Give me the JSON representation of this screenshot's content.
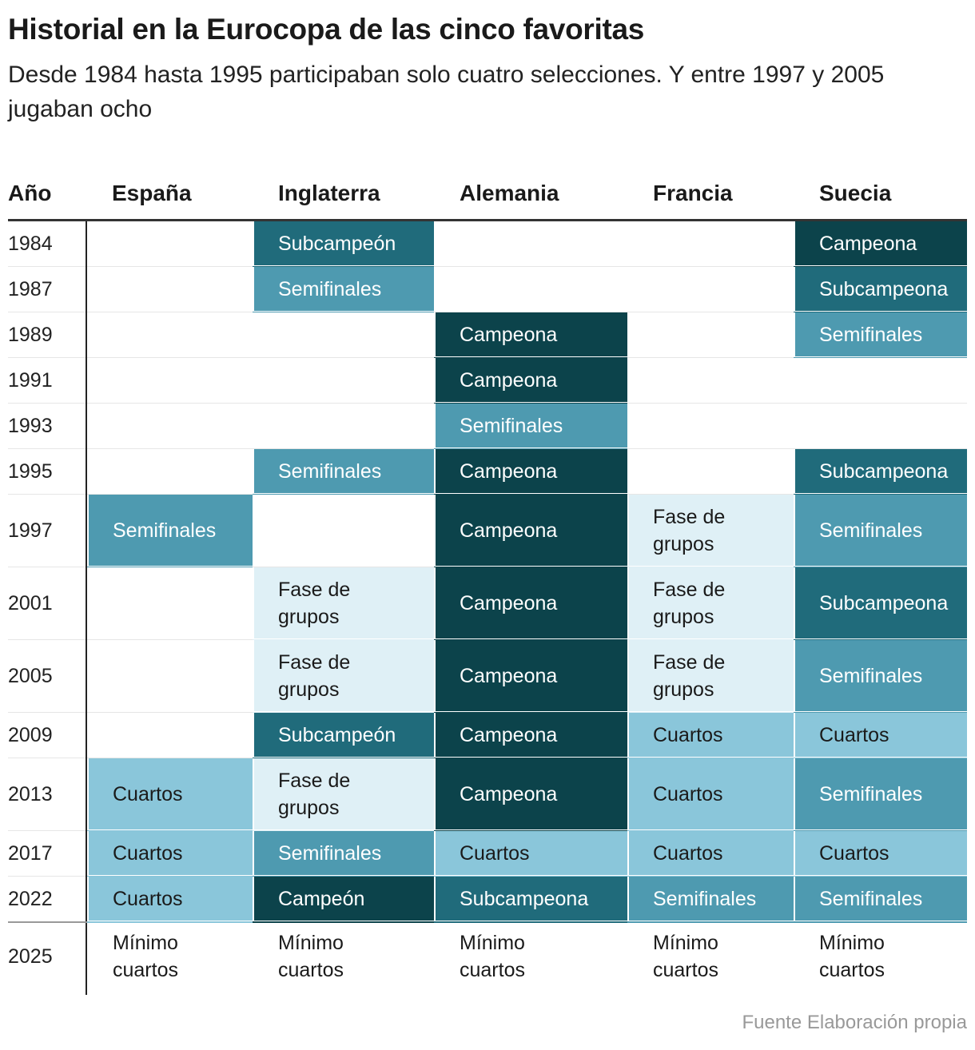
{
  "header": {
    "title": "Historial en la Eurocopa de las cinco favoritas",
    "subtitle": "Desde 1984 hasta 1995 participaban solo cuatro selecciones. Y entre 1997 y 2005 jugaban ocho"
  },
  "table": {
    "columns": [
      "Año",
      "España",
      "Inglaterra",
      "Alemania",
      "Francia",
      "Suecia"
    ],
    "rows": [
      {
        "year": "1984",
        "cells": [
          null,
          {
            "text": "Subcampeón",
            "color": "#206b7b"
          },
          null,
          null,
          {
            "text": "Campeona",
            "color": "#0c434b"
          }
        ]
      },
      {
        "year": "1987",
        "cells": [
          null,
          {
            "text": "Semifinales",
            "color": "#4e9ab0"
          },
          null,
          null,
          {
            "text": "Subcampeona",
            "color": "#206b7b"
          }
        ]
      },
      {
        "year": "1989",
        "cells": [
          null,
          null,
          {
            "text": "Campeona",
            "color": "#0c434b"
          },
          null,
          {
            "text": "Semifinales",
            "color": "#4e9ab0"
          }
        ]
      },
      {
        "year": "1991",
        "cells": [
          null,
          null,
          {
            "text": "Campeona",
            "color": "#0c434b"
          },
          null,
          null
        ]
      },
      {
        "year": "1993",
        "cells": [
          null,
          null,
          {
            "text": "Semifinales",
            "color": "#4e9ab0"
          },
          null,
          null
        ]
      },
      {
        "year": "1995",
        "cells": [
          null,
          {
            "text": "Semifinales",
            "color": "#4e9ab0"
          },
          {
            "text": "Campeona",
            "color": "#0c434b"
          },
          null,
          {
            "text": "Subcampeona",
            "color": "#206b7b"
          }
        ]
      },
      {
        "year": "1997",
        "cells": [
          {
            "text": "Semifinales",
            "color": "#4e9ab0"
          },
          null,
          {
            "text": "Campeona",
            "color": "#0c434b"
          },
          {
            "text": "Fase de grupos",
            "color": "#dff0f6"
          },
          {
            "text": "Semifinales",
            "color": "#4e9ab0"
          }
        ]
      },
      {
        "year": "2001",
        "cells": [
          null,
          {
            "text": "Fase de grupos",
            "color": "#dff0f6"
          },
          {
            "text": "Campeona",
            "color": "#0c434b"
          },
          {
            "text": "Fase de grupos",
            "color": "#dff0f6"
          },
          {
            "text": "Subcampeona",
            "color": "#206b7b"
          }
        ]
      },
      {
        "year": "2005",
        "cells": [
          null,
          {
            "text": "Fase de grupos",
            "color": "#dff0f6"
          },
          {
            "text": "Campeona",
            "color": "#0c434b"
          },
          {
            "text": "Fase de grupos",
            "color": "#dff0f6"
          },
          {
            "text": "Semifinales",
            "color": "#4e9ab0"
          }
        ]
      },
      {
        "year": "2009",
        "cells": [
          null,
          {
            "text": "Subcampeón",
            "color": "#206b7b"
          },
          {
            "text": "Campeona",
            "color": "#0c434b"
          },
          {
            "text": "Cuartos",
            "color": "#8ac6da"
          },
          {
            "text": "Cuartos",
            "color": "#8ac6da"
          }
        ]
      },
      {
        "year": "2013",
        "cells": [
          {
            "text": "Cuartos",
            "color": "#8ac6da"
          },
          {
            "text": "Fase de grupos",
            "color": "#dff0f6"
          },
          {
            "text": "Campeona",
            "color": "#0c434b"
          },
          {
            "text": "Cuartos",
            "color": "#8ac6da"
          },
          {
            "text": "Semifinales",
            "color": "#4e9ab0"
          }
        ]
      },
      {
        "year": "2017",
        "cells": [
          {
            "text": "Cuartos",
            "color": "#8ac6da"
          },
          {
            "text": "Semifinales",
            "color": "#4e9ab0"
          },
          {
            "text": "Cuartos",
            "color": "#8ac6da"
          },
          {
            "text": "Cuartos",
            "color": "#8ac6da"
          },
          {
            "text": "Cuartos",
            "color": "#8ac6da"
          }
        ]
      },
      {
        "year": "2022",
        "cells": [
          {
            "text": "Cuartos",
            "color": "#8ac6da"
          },
          {
            "text": "Campeón",
            "color": "#0c434b"
          },
          {
            "text": "Subcampeona",
            "color": "#206b7b"
          },
          {
            "text": "Semifinales",
            "color": "#4e9ab0"
          },
          {
            "text": "Semifinales",
            "color": "#4e9ab0"
          }
        ]
      },
      {
        "year": "2025",
        "cells": [
          {
            "text": "Mínimo cuartos"
          },
          {
            "text": "Mínimo cuartos"
          },
          {
            "text": "Mínimo cuartos"
          },
          {
            "text": "Mínimo cuartos"
          },
          {
            "text": "Mínimo cuartos"
          }
        ]
      }
    ]
  },
  "source": "Fuente Elaboración propia"
}
